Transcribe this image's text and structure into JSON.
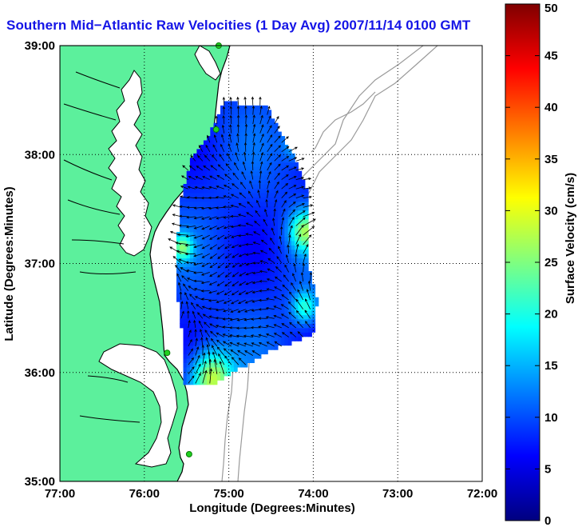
{
  "title": "Southern Mid−Atlantic Raw Velocities (1 Day Avg) 2007/11/14 0100 GMT",
  "chart_data": {
    "type": "heatmap",
    "title": "Southern Mid−Atlantic Raw Velocities (1 Day Avg) 2007/11/14 0100 GMT",
    "xlabel": "Longitude (Degrees:Minutes)",
    "ylabel": "Latitude (Degrees:Minutes)",
    "colorbar_label": "Surface Velocity (cm/s)",
    "xlim": [
      -77,
      -72
    ],
    "ylim": [
      35,
      39
    ],
    "xticks": [
      {
        "value": -77,
        "label": "77:00"
      },
      {
        "value": -76,
        "label": "76:00"
      },
      {
        "value": -75,
        "label": "75:00"
      },
      {
        "value": -74,
        "label": "74:00"
      },
      {
        "value": -73,
        "label": "73:00"
      },
      {
        "value": -72,
        "label": "72:00"
      }
    ],
    "yticks": [
      {
        "value": 35,
        "label": "35:00"
      },
      {
        "value": 36,
        "label": "36:00"
      },
      {
        "value": 37,
        "label": "37:00"
      },
      {
        "value": 38,
        "label": "38:00"
      },
      {
        "value": 39,
        "label": "39:00"
      }
    ],
    "colorbar_range": [
      0,
      50
    ],
    "colorbar_ticks": [
      0,
      5,
      10,
      15,
      20,
      25,
      30,
      35,
      40,
      45,
      50
    ],
    "grid": true,
    "colors": {
      "land": "#5cf09c",
      "coast_outline": "#000000",
      "bathymetry": "#9a9a9a",
      "stations": "#20d020",
      "arrows": "#000000",
      "title": "#1414e6"
    },
    "stations": [
      {
        "lon": -75.12,
        "lat": 39.0
      },
      {
        "lon": -75.15,
        "lat": 38.23
      },
      {
        "lon": -75.73,
        "lat": 36.18
      },
      {
        "lon": -75.47,
        "lat": 35.25
      }
    ]
  }
}
